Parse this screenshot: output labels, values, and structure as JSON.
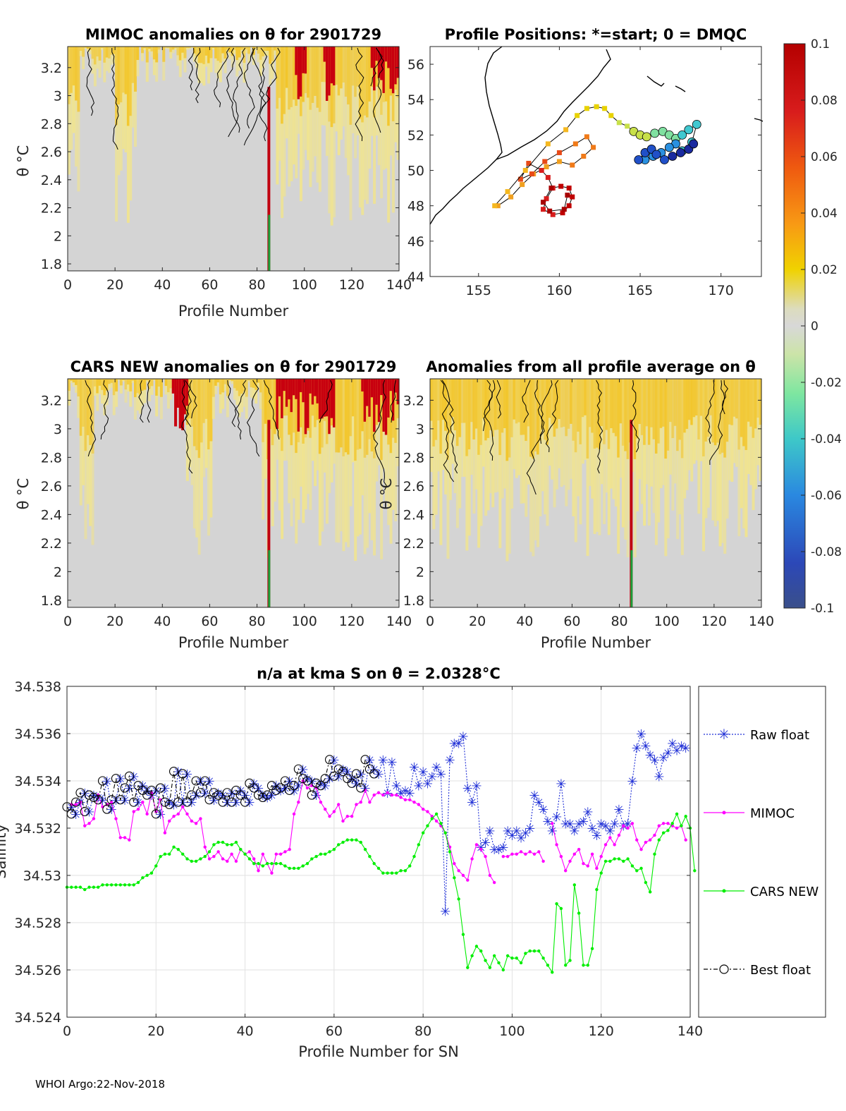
{
  "chart_data": [
    {
      "type": "heatmap",
      "id": "mimoc",
      "title": "MIMOC anomalies on θ  for 2901729",
      "xlabel": "Profile Number",
      "ylabel": "θ °C",
      "xlim": [
        0,
        140
      ],
      "ylim": [
        1.75,
        3.35
      ],
      "xticks": [
        "0",
        "20",
        "40",
        "60",
        "80",
        "100",
        "120",
        "140"
      ],
      "yticks": [
        "1.8",
        "2",
        "2.2",
        "2.4",
        "2.6",
        "2.8",
        "3",
        "3.2"
      ]
    },
    {
      "type": "scatter",
      "id": "positions",
      "title": "Profile Positions: *=start; 0 = DMQC",
      "xlim": [
        152,
        172.5
      ],
      "ylim": [
        44,
        57
      ],
      "xticks": [
        "155",
        "160",
        "165",
        "170"
      ],
      "yticks": [
        "44",
        "46",
        "48",
        "50",
        "52",
        "54",
        "56"
      ],
      "track": [
        [
          156.2,
          48.0
        ],
        [
          157.0,
          48.5
        ],
        [
          157.7,
          49.2
        ],
        [
          158.4,
          49.8
        ],
        [
          159.2,
          50.2
        ],
        [
          160.0,
          50.5
        ],
        [
          160.8,
          50.3
        ],
        [
          161.5,
          50.8
        ],
        [
          162.1,
          51.3
        ],
        [
          161.7,
          51.9
        ],
        [
          161.0,
          51.5
        ],
        [
          160.0,
          51.0
        ],
        [
          159.1,
          50.5
        ],
        [
          158.3,
          49.8
        ],
        [
          157.6,
          49.5
        ],
        [
          158.1,
          50.4
        ],
        [
          158.9,
          50.0
        ],
        [
          159.3,
          49.6
        ],
        [
          159.6,
          49.0
        ],
        [
          159.2,
          48.4
        ],
        [
          159.0,
          47.8
        ],
        [
          159.6,
          47.5
        ],
        [
          160.2,
          47.6
        ],
        [
          160.6,
          48.0
        ],
        [
          160.8,
          48.5
        ],
        [
          160.6,
          49.0
        ],
        [
          160.1,
          49.1
        ],
        [
          159.5,
          49.0
        ],
        [
          159.0,
          48.2
        ],
        [
          159.4,
          47.7
        ],
        [
          160.3,
          47.8
        ],
        [
          160.5,
          48.6
        ]
      ],
      "track2": [
        [
          156.0,
          48.0
        ],
        [
          156.8,
          48.8
        ],
        [
          157.9,
          50.0
        ],
        [
          159.3,
          51.5
        ],
        [
          160.4,
          52.3
        ],
        [
          161.1,
          53.1
        ],
        [
          161.7,
          53.5
        ],
        [
          162.3,
          53.6
        ],
        [
          162.8,
          53.5
        ],
        [
          163.2,
          53.1
        ],
        [
          163.7,
          52.7
        ],
        [
          164.2,
          52.5
        ],
        [
          164.6,
          52.2
        ],
        [
          165.0,
          52.0
        ],
        [
          165.4,
          51.9
        ],
        [
          165.9,
          52.1
        ],
        [
          166.4,
          52.2
        ],
        [
          166.8,
          52.0
        ],
        [
          167.2,
          51.8
        ],
        [
          167.6,
          52.0
        ],
        [
          168.0,
          52.3
        ],
        [
          168.5,
          52.6
        ],
        [
          168.2,
          51.6
        ],
        [
          167.6,
          51.1
        ],
        [
          167.2,
          51.5
        ],
        [
          166.8,
          51.3
        ],
        [
          166.3,
          51.0
        ],
        [
          165.8,
          50.8
        ],
        [
          165.3,
          50.6
        ],
        [
          164.9,
          50.6
        ],
        [
          165.3,
          51.0
        ],
        [
          165.7,
          51.2
        ],
        [
          166.0,
          50.9
        ],
        [
          166.5,
          50.6
        ],
        [
          167.0,
          50.8
        ],
        [
          167.5,
          51.0
        ],
        [
          168.0,
          51.2
        ],
        [
          168.3,
          51.5
        ]
      ]
    },
    {
      "type": "heatmap",
      "id": "cars",
      "title": "CARS NEW anomalies on θ for 2901729",
      "xlabel": "Profile Number",
      "ylabel": "θ °C",
      "xlim": [
        0,
        140
      ],
      "ylim": [
        1.75,
        3.35
      ],
      "xticks": [
        "0",
        "20",
        "40",
        "60",
        "80",
        "100",
        "120",
        "140"
      ],
      "yticks": [
        "1.8",
        "2",
        "2.2",
        "2.4",
        "2.6",
        "2.8",
        "3",
        "3.2"
      ]
    },
    {
      "type": "heatmap",
      "id": "avg",
      "title": "Anomalies from all profile average on θ",
      "xlabel": "Profile Number",
      "xlim": [
        0,
        140
      ],
      "ylim": [
        1.75,
        3.35
      ],
      "xticks": [
        "0",
        "20",
        "40",
        "60",
        "80",
        "100",
        "120",
        "140"
      ]
    },
    {
      "type": "colorbar",
      "id": "colorbar",
      "ticks": [
        "0.1",
        "0.08",
        "0.06",
        "0.04",
        "0.02",
        "0",
        "-0.02",
        "-0.04",
        "-0.06",
        "-0.08",
        "-0.1"
      ],
      "range": [
        -0.1,
        0.1
      ]
    },
    {
      "type": "line",
      "id": "salinity",
      "title": "n/a at kma S on θ = 2.0328°C",
      "xlabel": "Profile Number for SN",
      "ylabel": "Salinity",
      "xlim": [
        0,
        140
      ],
      "ylim": [
        34.524,
        34.538
      ],
      "xticks": [
        "0",
        "20",
        "40",
        "60",
        "80",
        "100",
        "120",
        "140"
      ],
      "yticks": [
        "34.524",
        "34.526",
        "34.528",
        "34.53",
        "34.532",
        "34.534",
        "34.536",
        "34.538"
      ],
      "legend": [
        "Raw float",
        "MIMOC",
        "CARS NEW",
        "Best float"
      ],
      "series": [
        {
          "name": "Raw float",
          "color": "#1f2fd6",
          "x_start": 1,
          "values": [
            34.5329,
            34.5326,
            34.5331,
            34.5335,
            34.5327,
            34.5334,
            34.5333,
            34.5332,
            34.534,
            34.5328,
            34.5332,
            34.5341,
            34.5332,
            34.5337,
            34.5342,
            34.5331,
            34.5338,
            34.5336,
            34.5334,
            34.5336,
            34.5326,
            34.5337,
            34.5331,
            34.533,
            34.5344,
            34.5331,
            34.5343,
            34.5331,
            34.5334,
            34.534,
            34.5335,
            34.534,
            34.5332,
            34.5335,
            34.5334,
            34.5331,
            34.5335,
            34.5331,
            34.5336,
            34.5334,
            34.5331,
            34.5339,
            34.5337,
            34.5334,
            34.5333,
            34.5334,
            34.5338,
            34.5336,
            34.5337,
            34.534,
            34.5336,
            34.5338,
            34.5345,
            34.5341,
            34.534,
            34.5334,
            34.5339,
            34.5338,
            34.5341,
            34.5349,
            34.5342,
            34.5345,
            34.5344,
            34.5341,
            34.5339,
            34.5343,
            34.5337,
            34.5349,
            34.5345,
            34.5343,
            34.5349,
            34.5335,
            34.5348,
            34.5338,
            34.5335,
            34.5336,
            34.5335,
            34.5346,
            34.5338,
            34.5344,
            34.5339,
            34.5342,
            34.5346,
            34.5343,
            34.5285,
            34.5349,
            34.5356,
            34.5356,
            34.5359,
            34.5337,
            34.5331,
            34.5338,
            34.5312,
            34.5314,
            34.5319,
            34.5311,
            34.5311,
            34.5312,
            34.5319,
            34.5317,
            34.5319,
            34.5316,
            34.5318,
            34.532,
            34.5334,
            34.5331,
            34.5328,
            34.5323,
            34.5319,
            34.5325,
            34.5339,
            34.5322,
            34.5322,
            34.5319,
            34.5322,
            34.5323,
            34.5327,
            34.532,
            34.5317,
            34.5322,
            34.5321,
            34.5319,
            34.5322,
            34.5328,
            34.5321,
            34.5322,
            34.534,
            34.5354,
            34.536,
            34.5355,
            34.5351,
            34.5349,
            34.5342,
            34.535,
            34.5352,
            34.5356,
            34.5353,
            34.5355,
            34.5354
          ]
        },
        {
          "name": "MIMOC",
          "color": "#ff00ff",
          "x_start": 1,
          "values": [
            34.533,
            34.533,
            34.5331,
            34.5321,
            34.5322,
            34.5324,
            34.5334,
            34.5329,
            34.533,
            34.5331,
            34.5324,
            34.5316,
            34.5316,
            34.5315,
            34.5327,
            34.5328,
            34.5331,
            34.5326,
            34.5335,
            34.5327,
            34.5332,
            34.5318,
            34.5323,
            34.5325,
            34.5326,
            34.5329,
            34.5326,
            34.5323,
            34.5322,
            34.5324,
            34.5312,
            34.5307,
            34.5308,
            34.531,
            34.5307,
            34.5306,
            34.5309,
            34.5306,
            34.5311,
            34.5309,
            34.531,
            34.5307,
            34.5302,
            34.5309,
            34.5305,
            34.5301,
            34.5309,
            34.5309,
            34.531,
            34.5311,
            34.5326,
            34.5331,
            34.534,
            34.5337,
            34.5338,
            34.5337,
            34.5331,
            34.5328,
            34.5325,
            34.5327,
            34.533,
            34.5323,
            34.5325,
            34.5325,
            34.533,
            34.5331,
            34.5336,
            34.5331,
            34.5334,
            34.5335,
            34.5334,
            34.5335,
            34.5334,
            34.5334,
            34.5333,
            34.5332,
            34.5332,
            34.5331,
            34.533,
            34.5328,
            34.5327,
            34.5325,
            34.5323,
            34.5321,
            34.5318,
            34.5312,
            34.5305,
            34.5302,
            34.53,
            34.5298,
            34.5307,
            34.5313,
            34.5311,
            34.5308,
            34.53,
            34.5297,
            null,
            34.5308,
            34.5308,
            34.5309,
            34.5309,
            34.531,
            34.5309,
            34.531,
            34.5309,
            34.531,
            34.5306,
            null,
            34.5322,
            34.5313,
            34.5308,
            34.5302,
            34.5306,
            34.5309,
            34.5311,
            34.5305,
            34.5304,
            34.5309,
            34.5303,
            34.5308,
            34.5313,
            34.5316,
            34.5313,
            34.5317,
            34.5321,
            34.532,
            34.5322,
            34.5315,
            34.5311,
            34.5314,
            34.5315,
            34.5317,
            34.5321,
            34.5322,
            34.5322,
            34.5321,
            34.532,
            34.5321,
            34.5315
          ]
        },
        {
          "name": "CARS NEW",
          "color": "#00ee00",
          "x_start": 0,
          "values": [
            34.5295,
            34.5295,
            34.5295,
            34.5295,
            34.5294,
            34.5295,
            34.5295,
            34.5295,
            34.5296,
            34.5296,
            34.5296,
            34.5296,
            34.5296,
            34.5296,
            34.5296,
            34.5296,
            34.5297,
            34.5299,
            34.53,
            34.5301,
            34.5304,
            34.5308,
            34.5309,
            34.5309,
            34.5312,
            34.5311,
            34.5309,
            34.5307,
            34.5306,
            34.5306,
            34.5307,
            34.5308,
            34.531,
            34.5313,
            34.5314,
            34.5314,
            34.5313,
            34.5313,
            34.5314,
            34.5311,
            34.5309,
            34.5307,
            34.5305,
            34.5305,
            34.5304,
            34.5305,
            34.5305,
            34.5305,
            34.5305,
            34.5304,
            34.5303,
            34.5303,
            34.5303,
            34.5304,
            34.5305,
            34.5307,
            34.5308,
            34.5309,
            34.5309,
            34.531,
            34.5311,
            34.5313,
            34.5314,
            34.5315,
            34.5315,
            34.5315,
            34.5314,
            34.5311,
            34.5308,
            34.5305,
            34.5303,
            34.5301,
            34.5301,
            34.5301,
            34.5301,
            34.5302,
            34.5302,
            34.5304,
            34.5308,
            34.5313,
            34.5318,
            34.5321,
            34.5324,
            34.5326,
            34.5322,
            34.5318,
            34.531,
            34.5299,
            34.529,
            34.5275,
            34.5261,
            34.5266,
            34.527,
            34.5268,
            34.5264,
            34.5261,
            34.5266,
            34.5263,
            34.526,
            34.5266,
            34.5265,
            34.5265,
            34.5263,
            34.5267,
            34.5268,
            34.5268,
            34.5268,
            34.5265,
            34.5262,
            34.5259,
            34.5288,
            34.5286,
            34.5262,
            34.5264,
            34.5296,
            34.5284,
            34.5262,
            34.5262,
            34.5269,
            34.5294,
            34.5301,
            34.5306,
            34.5306,
            34.5307,
            34.5307,
            34.5306,
            34.5307,
            34.5304,
            34.5302,
            34.5303,
            34.5297,
            34.5293,
            34.5309,
            34.5315,
            34.5318,
            34.5319,
            34.5322,
            34.5326,
            34.5321,
            34.5325,
            34.532,
            34.5302
          ]
        },
        {
          "name": "Best float",
          "color": "#000000",
          "x_start": 0,
          "values": [
            34.5329,
            34.5326,
            34.5331,
            34.5335,
            34.5327,
            34.5334,
            34.5333,
            34.5332,
            34.534,
            34.5328,
            34.5332,
            34.5341,
            34.5332,
            34.5337,
            34.5342,
            34.5331,
            34.5338,
            34.5336,
            34.5334,
            34.5336,
            34.5326,
            34.5337,
            34.5331,
            34.533,
            34.5344,
            34.5331,
            34.5343,
            34.5331,
            34.5334,
            34.534,
            34.5335,
            34.534,
            34.5332,
            34.5335,
            34.5334,
            34.5331,
            34.5335,
            34.5331,
            34.5336,
            34.5334,
            34.5331,
            34.5339,
            34.5337,
            34.5334,
            34.5333,
            34.5334,
            34.5338,
            34.5336,
            34.5337,
            34.534,
            34.5336,
            34.5338,
            34.5345,
            34.5341,
            34.534,
            34.5334,
            34.5339,
            34.5338,
            34.5341,
            34.5349,
            34.5342,
            34.5345,
            34.5344,
            34.5341,
            34.5339,
            34.5343,
            34.5337,
            34.5349,
            34.5345,
            34.5343
          ]
        }
      ]
    }
  ],
  "footer": "WHOI Argo:22-Nov-2018"
}
